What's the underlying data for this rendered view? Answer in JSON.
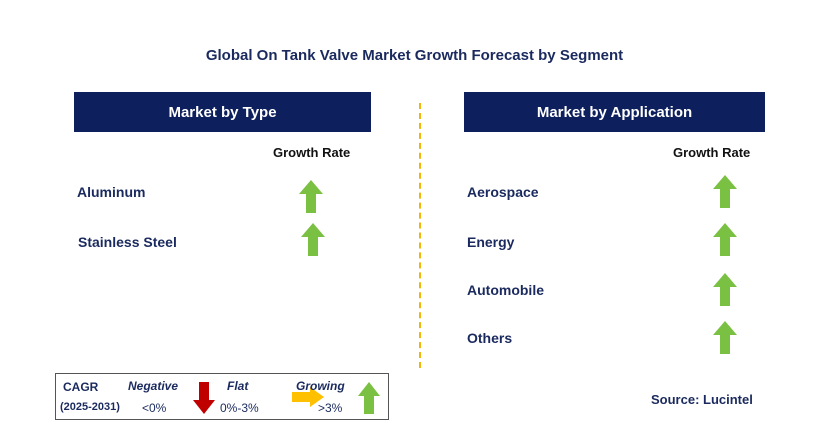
{
  "title": "Global On Tank Valve Market Growth Forecast by Segment",
  "left_panel": {
    "header": "Market by Type",
    "growth_header": "Growth Rate",
    "items": [
      {
        "label": "Aluminum",
        "trend": "growing"
      },
      {
        "label": "Stainless Steel",
        "trend": "growing"
      }
    ]
  },
  "right_panel": {
    "header": "Market by Application",
    "growth_header": "Growth Rate",
    "items": [
      {
        "label": "Aerospace",
        "trend": "growing"
      },
      {
        "label": "Energy",
        "trend": "growing"
      },
      {
        "label": "Automobile",
        "trend": "growing"
      },
      {
        "label": "Others",
        "trend": "growing"
      }
    ]
  },
  "legend": {
    "cagr_label": "CAGR",
    "period": "(2025-2031)",
    "negative": {
      "label": "Negative",
      "range": "<0%",
      "color": "#c00000"
    },
    "flat": {
      "label": "Flat",
      "range": "0%-3%",
      "color": "#ffc000"
    },
    "growing": {
      "label": "Growing",
      "range": ">3%",
      "color": "#7ac143"
    }
  },
  "source": "Source: Lucintel"
}
